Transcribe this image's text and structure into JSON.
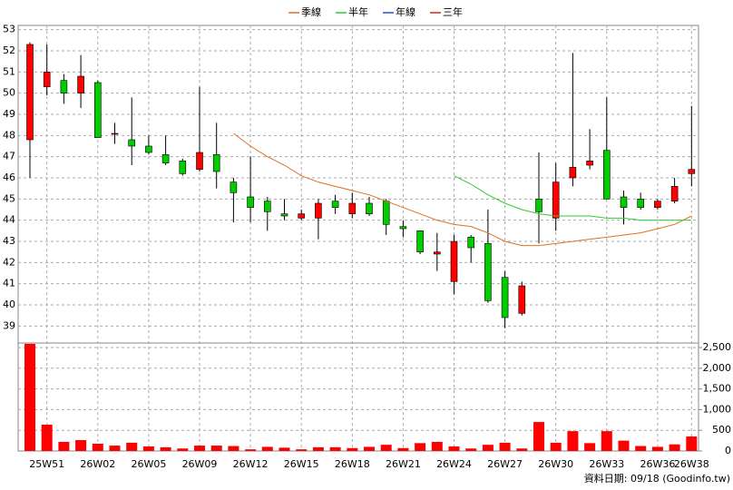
{
  "chart_data": {
    "type": "candlestick",
    "categories": [
      null,
      "25W51",
      null,
      null,
      "26W02",
      null,
      null,
      "26W05",
      null,
      null,
      "26W09",
      null,
      null,
      "26W12",
      null,
      null,
      "26W15",
      null,
      null,
      "26W18",
      null,
      null,
      "26W21",
      null,
      null,
      "26W24",
      null,
      null,
      "26W27",
      null,
      null,
      "26W30",
      null,
      null,
      "26W33",
      null,
      null,
      "26W36",
      null,
      "26W38"
    ],
    "open": [
      47.8,
      50.3,
      50.6,
      50.0,
      50.5,
      48.1,
      47.8,
      47.5,
      47.1,
      46.8,
      46.4,
      47.1,
      45.8,
      45.1,
      44.9,
      44.3,
      44.1,
      44.1,
      44.9,
      44.3,
      44.8,
      44.9,
      43.7,
      43.5,
      42.4,
      41.1,
      43.2,
      42.9,
      41.3,
      39.6,
      45.0,
      44.1,
      46.0,
      46.6,
      47.3,
      45.1,
      45.0,
      44.6,
      44.9,
      46.2
    ],
    "high": [
      52.4,
      52.3,
      50.9,
      51.8,
      50.6,
      48.6,
      49.8,
      48.0,
      48.0,
      46.9,
      50.3,
      48.6,
      46.0,
      47.0,
      45.1,
      45.0,
      44.5,
      45.0,
      45.2,
      45.3,
      45.1,
      45.0,
      44.0,
      43.5,
      43.4,
      43.3,
      43.3,
      44.5,
      41.6,
      41.1,
      47.2,
      46.7,
      51.9,
      48.3,
      49.8,
      45.4,
      45.3,
      45.0,
      46.0,
      49.4
    ],
    "low": [
      46.0,
      49.9,
      49.5,
      49.3,
      47.9,
      47.6,
      46.6,
      47.1,
      46.6,
      46.1,
      46.3,
      45.5,
      43.9,
      43.9,
      43.5,
      44.0,
      44.0,
      43.1,
      44.3,
      44.1,
      44.2,
      43.3,
      43.2,
      42.4,
      41.6,
      40.5,
      42.0,
      40.1,
      38.9,
      39.5,
      42.9,
      43.5,
      45.6,
      46.4,
      45.0,
      43.8,
      44.5,
      44.5,
      44.8,
      45.6
    ],
    "close": [
      52.3,
      51.0,
      50.0,
      50.8,
      47.9,
      48.1,
      47.5,
      47.2,
      46.7,
      46.2,
      47.2,
      46.3,
      45.3,
      44.6,
      44.4,
      44.2,
      44.3,
      44.8,
      44.6,
      44.8,
      44.3,
      43.8,
      43.6,
      42.5,
      42.5,
      43.0,
      42.7,
      40.2,
      39.4,
      40.9,
      44.4,
      45.8,
      46.5,
      46.8,
      45.0,
      44.6,
      44.6,
      44.9,
      45.6,
      46.4
    ],
    "volume": [
      2590,
      636,
      220,
      263,
      175,
      130,
      200,
      110,
      90,
      60,
      130,
      130,
      120,
      40,
      100,
      80,
      40,
      90,
      90,
      70,
      100,
      150,
      70,
      190,
      220,
      110,
      60,
      150,
      200,
      60,
      700,
      200,
      480,
      190,
      480,
      250,
      120,
      100,
      160,
      350
    ],
    "up_color": "#ff0000",
    "down_color": "#00cc00",
    "volume_color": "#ff0000",
    "lines": [
      {
        "name": "季線",
        "color": "#e07020",
        "values": [
          null,
          null,
          null,
          null,
          null,
          null,
          null,
          null,
          null,
          null,
          null,
          null,
          48.1,
          47.5,
          47.0,
          46.6,
          46.1,
          45.8,
          45.6,
          45.4,
          45.2,
          44.9,
          44.6,
          44.3,
          44.0,
          43.8,
          43.7,
          43.4,
          43.0,
          42.8,
          42.8,
          42.9,
          43.0,
          43.1,
          43.2,
          43.3,
          43.4,
          43.6,
          43.8,
          44.2
        ]
      },
      {
        "name": "半年",
        "color": "#33cc33",
        "values": [
          null,
          null,
          null,
          null,
          null,
          null,
          null,
          null,
          null,
          null,
          null,
          null,
          null,
          null,
          null,
          null,
          null,
          null,
          null,
          null,
          null,
          null,
          null,
          null,
          null,
          46.1,
          45.7,
          45.2,
          44.8,
          44.5,
          44.3,
          44.2,
          44.2,
          44.2,
          44.1,
          44.1,
          44.0,
          44.0,
          44.0,
          44.0
        ]
      },
      {
        "name": "年線",
        "color": "#2255cc",
        "values": [
          null,
          null,
          null,
          null,
          null,
          null,
          null,
          null,
          null,
          null,
          null,
          null,
          null,
          null,
          null,
          null,
          null,
          null,
          null,
          null,
          null,
          null,
          null,
          null,
          null,
          null,
          null,
          null,
          null,
          null,
          null,
          null,
          null,
          null,
          null,
          null,
          null,
          null,
          null,
          null
        ]
      },
      {
        "name": "三年",
        "color": "#dd2222",
        "values": [
          null,
          null,
          null,
          null,
          null,
          null,
          null,
          null,
          null,
          null,
          null,
          null,
          null,
          null,
          null,
          null,
          null,
          null,
          null,
          null,
          null,
          null,
          null,
          null,
          null,
          null,
          null,
          null,
          null,
          null,
          null,
          null,
          null,
          null,
          null,
          null,
          null,
          null,
          null,
          null
        ]
      }
    ],
    "ylim": [
      38.2,
      53.2
    ],
    "yticks": [
      39,
      40,
      41,
      42,
      43,
      44,
      45,
      46,
      47,
      48,
      49,
      50,
      51,
      52,
      53
    ],
    "y2lim": [
      0,
      2610
    ],
    "y2ticks": [
      0,
      500,
      {
        "value": 1000,
        "label": "1,000"
      },
      {
        "value": 1500,
        "label": "1,500"
      },
      {
        "value": 2000,
        "label": "2,000"
      },
      {
        "value": 2500,
        "label": "2,500"
      }
    ],
    "grid": true,
    "footer": "資料日期: 09/18 (Goodinfo.tw)"
  }
}
